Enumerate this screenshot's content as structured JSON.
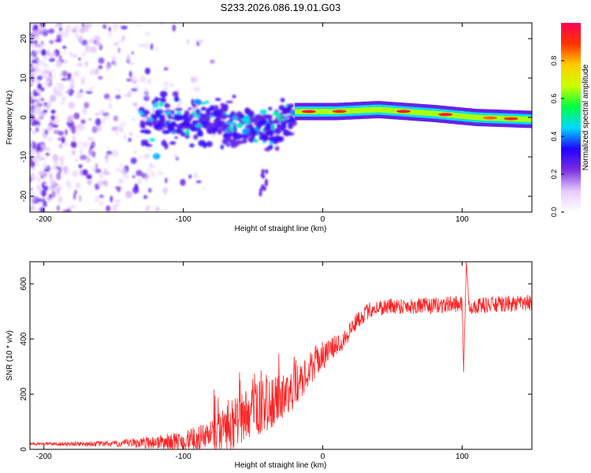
{
  "title": "S233.2026.086.19.01.G03",
  "chart_data": [
    {
      "type": "heatmap",
      "title": "S233.2026.086.19.01.G03",
      "xlabel": "Height of straight line (km)",
      "ylabel": "Frequency (Hz)",
      "xlim": [
        -210,
        150
      ],
      "ylim": [
        -24,
        24
      ],
      "xticks": [
        -200,
        -100,
        0,
        100
      ],
      "yticks": [
        -20,
        -10,
        0,
        10,
        20
      ],
      "colorbar": {
        "label": "Normalized spectral amplitude",
        "range": [
          0,
          1
        ],
        "ticks": [
          0.0,
          0.2,
          0.4,
          0.6,
          0.8
        ],
        "stops": [
          "#ffffff",
          "#e6ccff",
          "#7a2fe0",
          "#2200ff",
          "#00d8ff",
          "#00ff44",
          "#ccff00",
          "#ffcc00",
          "#ff3300",
          "#ff0055"
        ]
      },
      "features": [
        {
          "name": "scattered speckle",
          "x": [
            -210,
            -70
          ],
          "freq": [
            -24,
            24
          ],
          "amplitude": 0.15
        },
        {
          "name": "ionospheric core",
          "x": [
            -130,
            -20
          ],
          "freq": [
            -10,
            6
          ],
          "amplitude": 0.35
        },
        {
          "name": "narrowband line",
          "x": [
            -20,
            150
          ],
          "freq_center": [
            1.5,
            1.5,
            2,
            1,
            0,
            -0.5
          ],
          "freq_center_x": [
            -20,
            10,
            40,
            80,
            110,
            150
          ],
          "amplitude": 0.9
        },
        {
          "name": "isolated streak",
          "x": [
            -45,
            -40
          ],
          "freq": [
            -20,
            -13
          ],
          "amplitude": 0.25
        }
      ]
    },
    {
      "type": "line",
      "xlabel": "Height of straight line (km)",
      "ylabel": "SNR (10 * v/v)",
      "xlim": [
        -210,
        150
      ],
      "ylim": [
        0,
        680
      ],
      "xticks": [
        -200,
        -100,
        0,
        100
      ],
      "yticks": [
        0,
        200,
        400,
        600
      ],
      "color": "#ff2222",
      "series": [
        {
          "name": "SNR",
          "profile_x": [
            -210,
            -150,
            -100,
            -80,
            -65,
            -55,
            -45,
            -35,
            -25,
            -15,
            -5,
            5,
            15,
            25,
            35,
            50,
            80,
            100,
            101,
            103,
            105,
            150
          ],
          "profile_y": [
            20,
            20,
            30,
            45,
            80,
            130,
            150,
            170,
            200,
            250,
            320,
            360,
            400,
            470,
            510,
            520,
            520,
            530,
            280,
            680,
            520,
            530
          ],
          "noise": [
            5,
            10,
            35,
            60,
            100,
            90,
            100,
            90,
            80,
            60,
            60,
            40,
            40,
            30,
            30,
            30,
            30,
            30,
            0,
            0,
            30,
            30
          ]
        }
      ]
    }
  ]
}
